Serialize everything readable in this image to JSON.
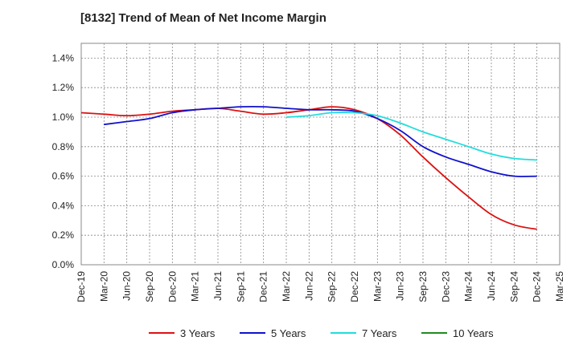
{
  "chart_data": {
    "type": "line",
    "title": "[8132]  Trend of Mean of Net Income Margin",
    "xlabel": "",
    "ylabel": "",
    "x_tick_labels": [
      "Dec-19",
      "Mar-20",
      "Jun-20",
      "Sep-20",
      "Dec-20",
      "Mar-21",
      "Jun-21",
      "Sep-21",
      "Dec-21",
      "Mar-22",
      "Jun-22",
      "Sep-22",
      "Dec-22",
      "Mar-23",
      "Jun-23",
      "Sep-23",
      "Dec-23",
      "Mar-24",
      "Jun-24",
      "Sep-24",
      "Dec-24",
      "Mar-25"
    ],
    "y_tick_labels": [
      "0.0%",
      "0.2%",
      "0.4%",
      "0.6%",
      "0.8%",
      "1.0%",
      "1.2%",
      "1.4%"
    ],
    "ylim": [
      0,
      1.5
    ],
    "y_unit": "%",
    "grid": true,
    "legend_position": "bottom",
    "series": [
      {
        "name": "3 Years",
        "color": "#dd1111",
        "x": [
          "Dec-19",
          "Mar-20",
          "Jun-20",
          "Sep-20",
          "Dec-20",
          "Mar-21",
          "Jun-21",
          "Sep-21",
          "Dec-21",
          "Mar-22",
          "Jun-22",
          "Sep-22",
          "Dec-22",
          "Mar-23",
          "Jun-23",
          "Sep-23",
          "Dec-23",
          "Mar-24",
          "Jun-24",
          "Sep-24",
          "Dec-24"
        ],
        "values": [
          1.03,
          1.02,
          1.01,
          1.02,
          1.04,
          1.05,
          1.06,
          1.04,
          1.02,
          1.03,
          1.05,
          1.07,
          1.05,
          0.99,
          0.88,
          0.73,
          0.59,
          0.46,
          0.34,
          0.27,
          0.24
        ]
      },
      {
        "name": "5 Years",
        "color": "#1111cc",
        "x": [
          "Mar-20",
          "Jun-20",
          "Sep-20",
          "Dec-20",
          "Mar-21",
          "Jun-21",
          "Sep-21",
          "Dec-21",
          "Mar-22",
          "Jun-22",
          "Sep-22",
          "Dec-22",
          "Mar-23",
          "Jun-23",
          "Sep-23",
          "Dec-23",
          "Mar-24",
          "Jun-24",
          "Sep-24",
          "Dec-24"
        ],
        "values": [
          0.95,
          0.97,
          0.99,
          1.03,
          1.05,
          1.06,
          1.07,
          1.07,
          1.06,
          1.05,
          1.05,
          1.04,
          0.99,
          0.91,
          0.8,
          0.73,
          0.68,
          0.63,
          0.6,
          0.6
        ]
      },
      {
        "name": "7 Years",
        "color": "#22dddd",
        "x": [
          "Mar-22",
          "Jun-22",
          "Sep-22",
          "Dec-22",
          "Mar-23",
          "Jun-23",
          "Sep-23",
          "Dec-23",
          "Mar-24",
          "Jun-24",
          "Sep-24",
          "Dec-24"
        ],
        "values": [
          1.0,
          1.01,
          1.03,
          1.03,
          1.01,
          0.96,
          0.9,
          0.85,
          0.8,
          0.75,
          0.72,
          0.71
        ]
      },
      {
        "name": "10 Years",
        "color": "#228822",
        "x": [],
        "values": []
      }
    ]
  }
}
